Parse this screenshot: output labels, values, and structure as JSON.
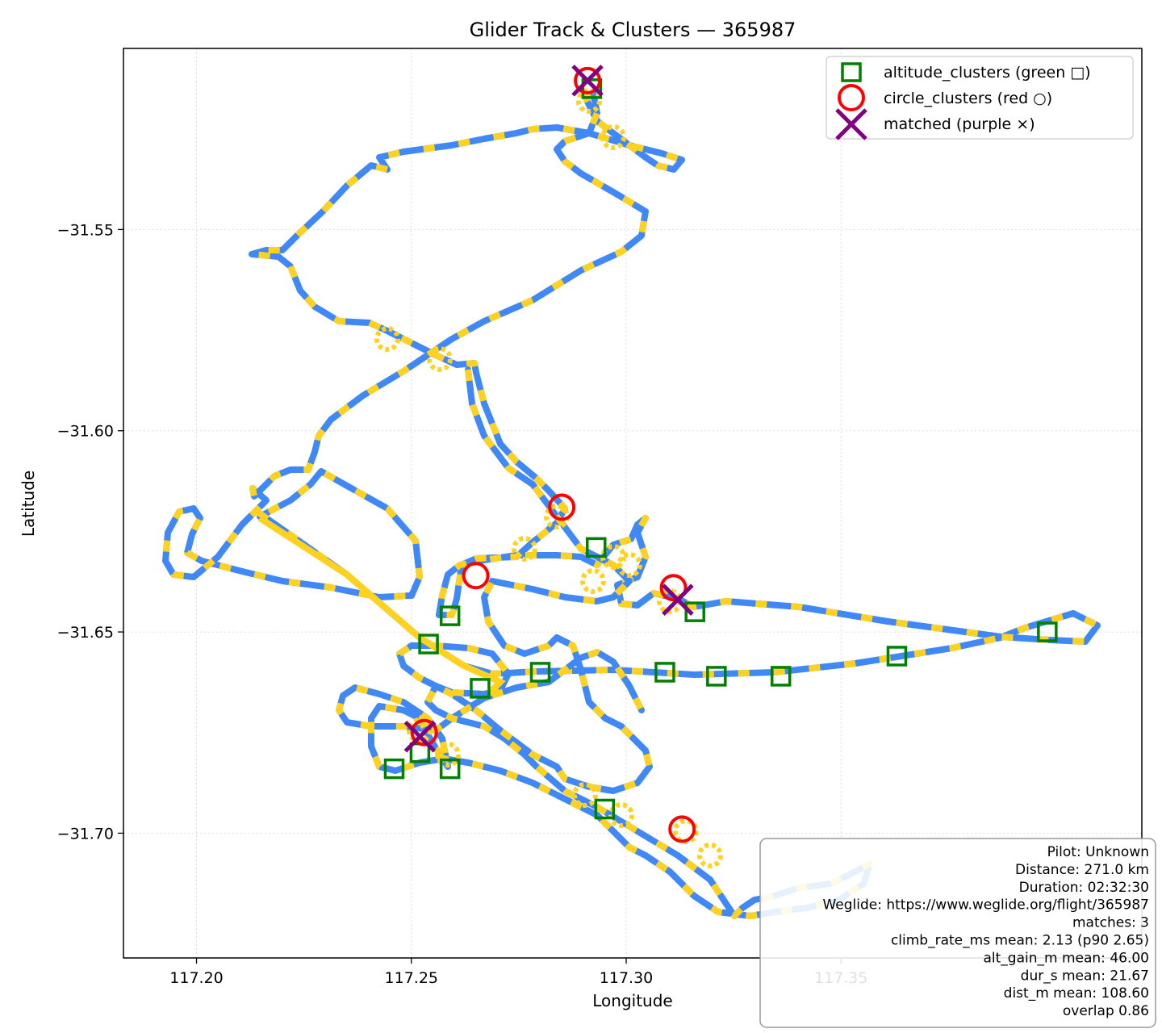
{
  "chart_data": {
    "type": "scatter",
    "title": "Glider Track & Clusters — 365987",
    "xlabel": "Longitude",
    "ylabel": "Latitude",
    "xlim": [
      117.183,
      117.42
    ],
    "ylim": [
      -31.731,
      -31.505
    ],
    "x_ticks": [
      117.2,
      117.25,
      117.3,
      117.35
    ],
    "x_tick_labels": [
      "117.20",
      "117.25",
      "117.30",
      "117.35"
    ],
    "y_ticks": [
      -31.55,
      -31.6,
      -31.65,
      -31.7
    ],
    "y_tick_labels": [
      "−31.55",
      "−31.60",
      "−31.65",
      "−31.70"
    ],
    "grid": true,
    "legend_position": "top-right",
    "colors": {
      "track_climb": "#FFD21F",
      "track_glide": "#3F88F5",
      "altitude_clusters": "#008000",
      "circle_clusters": "#FF0000",
      "matched": "#800080"
    },
    "series": [
      {
        "name": "altitude_clusters (green □)",
        "marker": "square",
        "x": [
          117.292,
          117.293,
          117.259,
          117.254,
          117.28,
          117.266,
          117.309,
          117.316,
          117.321,
          117.336,
          117.363,
          117.398,
          117.246,
          117.259,
          117.252,
          117.295
        ],
        "y": [
          -31.515,
          -31.629,
          -31.646,
          -31.653,
          -31.66,
          -31.664,
          -31.66,
          -31.645,
          -31.661,
          -31.661,
          -31.656,
          -31.65,
          -31.684,
          -31.684,
          -31.68,
          -31.694
        ]
      },
      {
        "name": "circle_clusters (red ○)",
        "marker": "circle",
        "x": [
          117.291,
          117.285,
          117.265,
          117.311,
          117.313,
          117.253
        ],
        "y": [
          -31.513,
          -31.619,
          -31.636,
          -31.639,
          -31.699,
          -31.675
        ]
      },
      {
        "name": "matched (purple ×)",
        "marker": "x",
        "x": [
          117.291,
          117.312,
          117.252
        ],
        "y": [
          -31.513,
          -31.642,
          -31.676
        ]
      }
    ],
    "info_box": [
      "Pilot: Unknown",
      "Distance: 271.0 km",
      "Duration: 02:32:30",
      "Weglide: https://www.weglide.org/flight/365987",
      "matches: 3",
      "climb_rate_ms mean: 2.13 (p90 2.65)",
      "alt_gain_m mean: 46.00",
      "dur_s mean: 21.67",
      "dist_m mean: 108.60",
      "overlap 0.86"
    ]
  }
}
